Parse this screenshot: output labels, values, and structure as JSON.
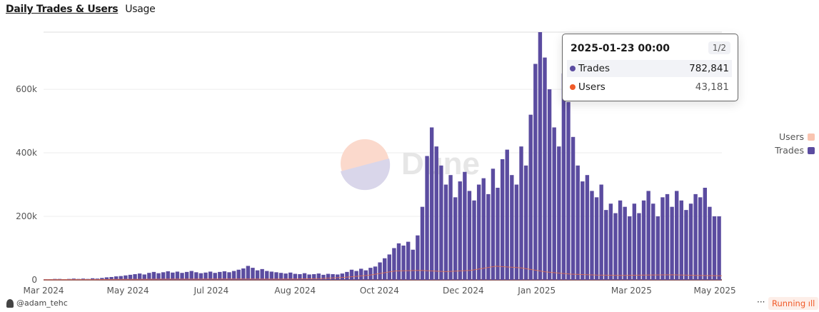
{
  "tabs": {
    "active": "Daily Trades & Users",
    "other": "Usage"
  },
  "tooltip": {
    "date": "2025-01-23 00:00",
    "page": "1/2",
    "rows": [
      {
        "name": "Trades",
        "value": "782,841"
      },
      {
        "name": "Users",
        "value": "43,181"
      }
    ]
  },
  "legend": [
    {
      "name": "Users",
      "color": "#f9c4b0"
    },
    {
      "name": "Trades",
      "color": "#5b4ca0"
    }
  ],
  "footer": {
    "user": "@adam_tehc",
    "more": "···",
    "status": "Running"
  },
  "watermark": "Dune",
  "chart_data": {
    "type": "bar",
    "title": "Daily Trades & Users",
    "ylabel": "",
    "xlabel": "",
    "ylim": [
      0,
      780000
    ],
    "y_ticks": [
      {
        "label": "0",
        "value": 0
      },
      {
        "label": "200k",
        "value": 200000
      },
      {
        "label": "400k",
        "value": 400000
      },
      {
        "label": "600k",
        "value": 600000
      }
    ],
    "x_ticks": [
      {
        "label": "Mar 2024",
        "index": 0
      },
      {
        "label": "May 2024",
        "index": 17.9
      },
      {
        "label": "Jul 2024",
        "index": 35.6
      },
      {
        "label": "Aug 2024",
        "index": 53.4
      },
      {
        "label": "Oct 2024",
        "index": 71.3
      },
      {
        "label": "Dec 2024",
        "index": 89.1
      },
      {
        "label": "Jan 2025",
        "index": 104.7
      },
      {
        "label": "Mar 2025",
        "index": 124.8
      },
      {
        "label": "May 2025",
        "index": 142.5
      }
    ],
    "series": [
      {
        "name": "Trades",
        "type": "bar",
        "color": "#5b4ca0",
        "unit": "thousands",
        "values": [
          2,
          2,
          3,
          3,
          2,
          3,
          4,
          3,
          4,
          3,
          5,
          4,
          6,
          8,
          9,
          11,
          12,
          14,
          16,
          18,
          20,
          17,
          22,
          25,
          21,
          24,
          27,
          23,
          26,
          22,
          25,
          28,
          24,
          21,
          23,
          26,
          22,
          25,
          27,
          24,
          28,
          32,
          36,
          44,
          38,
          30,
          34,
          28,
          26,
          24,
          22,
          20,
          23,
          19,
          18,
          21,
          17,
          18,
          20,
          16,
          19,
          18,
          17,
          20,
          25,
          32,
          28,
          35,
          30,
          38,
          42,
          55,
          68,
          80,
          100,
          115,
          108,
          120,
          95,
          140,
          230,
          390,
          480,
          420,
          360,
          300,
          330,
          260,
          310,
          340,
          280,
          250,
          300,
          320,
          270,
          350,
          290,
          380,
          410,
          330,
          300,
          420,
          360,
          520,
          680,
          780,
          700,
          600,
          480,
          420,
          650,
          560,
          450,
          360,
          310,
          330,
          280,
          260,
          300,
          220,
          240,
          210,
          250,
          230,
          200,
          240,
          210,
          250,
          280,
          240,
          200,
          260,
          270,
          230,
          280,
          250,
          220,
          240,
          270,
          260,
          290,
          230,
          200,
          200
        ]
      },
      {
        "name": "Users",
        "type": "line",
        "color": "#f05a28",
        "unit": "thousands",
        "values": [
          0.5,
          0.8,
          1,
          1.5,
          2,
          2.5,
          2.5,
          3,
          3,
          2.5,
          3,
          4,
          8,
          15,
          28,
          30,
          26,
          30,
          43,
          38,
          25,
          18,
          15,
          14,
          15,
          16,
          14,
          13
        ]
      }
    ],
    "grid": true,
    "legend_position": "right"
  }
}
